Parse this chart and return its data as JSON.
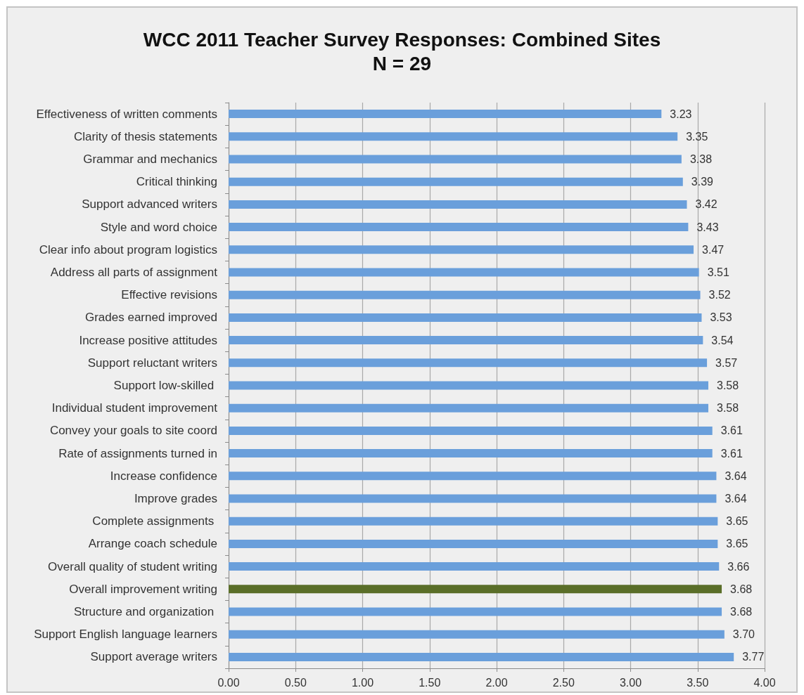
{
  "chart_data": {
    "type": "bar",
    "orientation": "horizontal",
    "title": "WCC 2011 Teacher Survey Responses: Combined Sites",
    "subtitle": "N = 29",
    "categories": [
      "Effectiveness of written comments",
      "Clarity of thesis statements",
      "Grammar and mechanics",
      "Critical thinking",
      "Support advanced writers",
      "Style and word choice",
      "Clear info about program logistics",
      "Address all parts of assignment",
      "Effective revisions",
      "Grades earned improved",
      "Increase positive attitudes",
      "Support reluctant writers",
      "Support low-skilled ",
      "Individual student improvement",
      "Convey your goals to site coord",
      "Rate of assignments turned in",
      "Increase confidence",
      "Improve grades",
      "Complete assignments ",
      "Arrange coach schedule",
      "Overall quality of student writing",
      "Overall improvement writing",
      "Structure and organization ",
      "Support English language learners",
      "Support average writers"
    ],
    "values": [
      3.23,
      3.35,
      3.38,
      3.39,
      3.42,
      3.43,
      3.47,
      3.51,
      3.52,
      3.53,
      3.54,
      3.57,
      3.58,
      3.58,
      3.61,
      3.61,
      3.64,
      3.64,
      3.65,
      3.65,
      3.66,
      3.68,
      3.68,
      3.7,
      3.77
    ],
    "value_labels": [
      "3.23",
      "3.35",
      "3.38",
      "3.39",
      "3.42",
      "3.43",
      "3.47",
      "3.51",
      "3.52",
      "3.53",
      "3.54",
      "3.57",
      "3.58",
      "3.58",
      "3.61",
      "3.61",
      "3.64",
      "3.64",
      "3.65",
      "3.65",
      "3.66",
      "3.68",
      "3.68",
      "3.70",
      "3.77"
    ],
    "colors": [
      "#6a9fdb",
      "#6a9fdb",
      "#6a9fdb",
      "#6a9fdb",
      "#6a9fdb",
      "#6a9fdb",
      "#6a9fdb",
      "#6a9fdb",
      "#6a9fdb",
      "#6a9fdb",
      "#6a9fdb",
      "#6a9fdb",
      "#6a9fdb",
      "#6a9fdb",
      "#6a9fdb",
      "#6a9fdb",
      "#6a9fdb",
      "#6a9fdb",
      "#6a9fdb",
      "#6a9fdb",
      "#6a9fdb",
      "#5a6e28",
      "#6a9fdb",
      "#6a9fdb",
      "#6a9fdb"
    ],
    "xlim": [
      0,
      4
    ],
    "xticks": [
      {
        "value": 0,
        "label": "0.00"
      },
      {
        "value": 0.5,
        "label": "0.50"
      },
      {
        "value": 1,
        "label": "1.00"
      },
      {
        "value": 1.5,
        "label": "1.50"
      },
      {
        "value": 2,
        "label": "2.00"
      },
      {
        "value": 2.5,
        "label": "2.50"
      },
      {
        "value": 3,
        "label": "3.00"
      },
      {
        "value": 3.5,
        "label": "3.50"
      },
      {
        "value": 4,
        "label": "4.00"
      }
    ],
    "grid": "x"
  }
}
